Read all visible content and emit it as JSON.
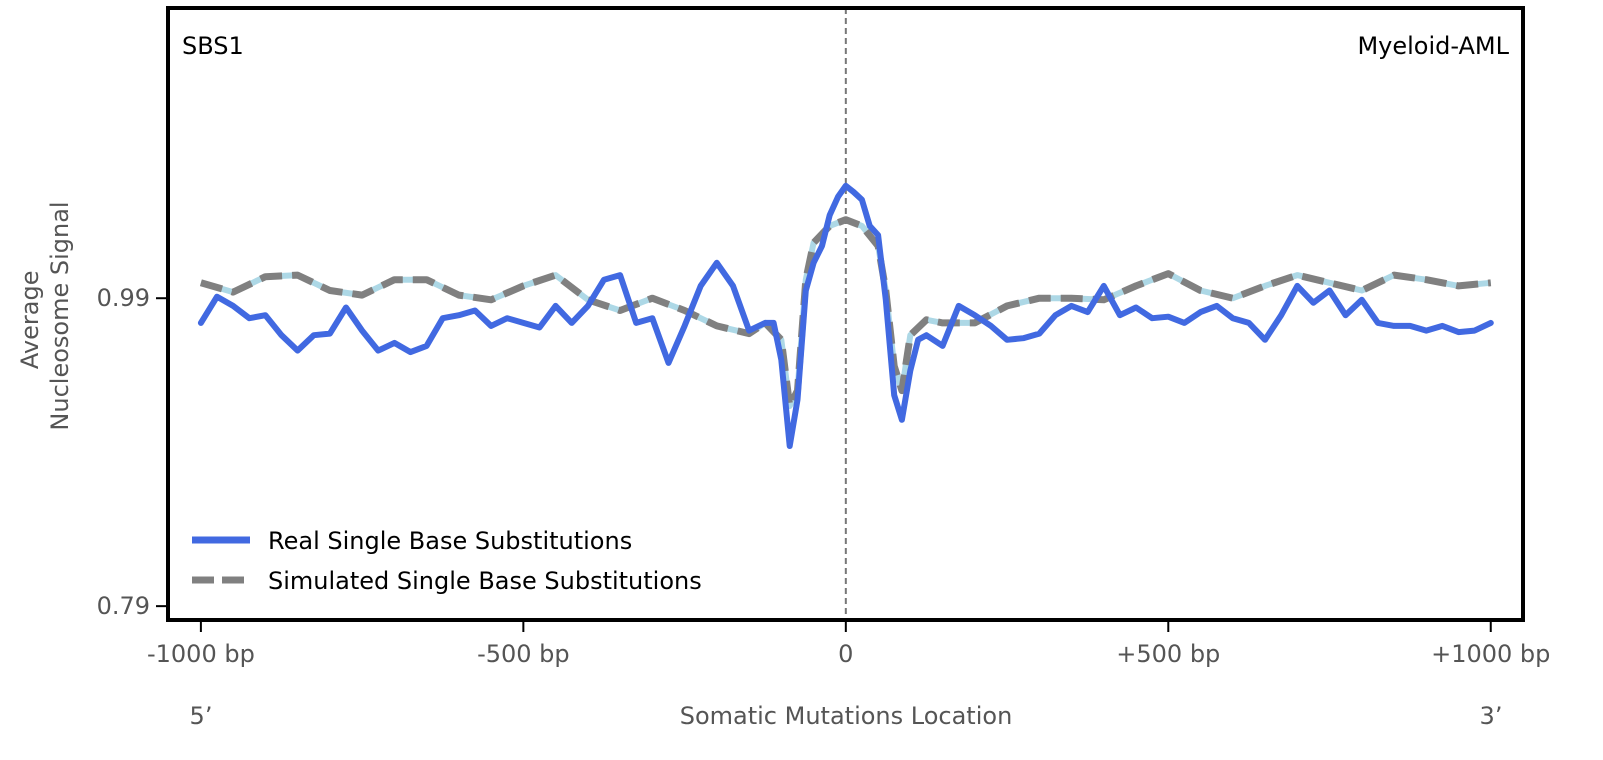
{
  "chart_data": {
    "type": "line",
    "title": "",
    "annotations": {
      "left": "SBS1",
      "right": "Myeloid-AML"
    },
    "xlabel": "Somatic Mutations Location",
    "ylabel_lines": [
      "Average",
      "Nucleosome Signal"
    ],
    "x_end_labels": {
      "left": "5’",
      "right": "3’"
    },
    "xlim": [
      -1051,
      1050
    ],
    "ylim": [
      0.781,
      1.1785
    ],
    "xticks": [
      {
        "value": -1000,
        "label": "-1000 bp"
      },
      {
        "value": -500,
        "label": "-500 bp"
      },
      {
        "value": 0,
        "label": "0"
      },
      {
        "value": 500,
        "label": "+500 bp"
      },
      {
        "value": 1000,
        "label": "+1000 bp"
      }
    ],
    "yticks": [
      {
        "value": 0.79,
        "label": "0.79"
      },
      {
        "value": 0.99,
        "label": "0.99"
      }
    ],
    "vline": 0,
    "legend": {
      "placement": "lower-left"
    },
    "colors": {
      "real": "#4169e1",
      "simulated": "#808080",
      "simulated_under": "#add8e6",
      "vline": "#777777",
      "tick_text": "#555555"
    },
    "series": [
      {
        "name": "Real Single Base Substitutions",
        "style": "solid",
        "x": [
          -1000,
          -975,
          -950,
          -925,
          -900,
          -875,
          -850,
          -825,
          -800,
          -775,
          -750,
          -725,
          -700,
          -675,
          -650,
          -625,
          -600,
          -575,
          -550,
          -525,
          -500,
          -475,
          -450,
          -425,
          -400,
          -375,
          -350,
          -325,
          -300,
          -275,
          -250,
          -225,
          -200,
          -175,
          -150,
          -125,
          -112,
          -100,
          -87,
          -75,
          -62,
          -50,
          -37,
          -25,
          -12,
          0,
          12,
          25,
          37,
          50,
          62,
          75,
          87,
          100,
          112,
          125,
          150,
          175,
          200,
          225,
          250,
          275,
          300,
          325,
          350,
          375,
          400,
          425,
          450,
          475,
          500,
          525,
          550,
          575,
          600,
          625,
          650,
          675,
          700,
          725,
          750,
          775,
          800,
          825,
          850,
          875,
          900,
          925,
          950,
          975,
          1000
        ],
        "values": [
          0.974,
          0.991,
          0.985,
          0.977,
          0.979,
          0.966,
          0.956,
          0.966,
          0.967,
          0.984,
          0.969,
          0.956,
          0.961,
          0.955,
          0.959,
          0.977,
          0.979,
          0.982,
          0.972,
          0.977,
          0.974,
          0.971,
          0.985,
          0.974,
          0.985,
          1.002,
          1.005,
          0.974,
          0.977,
          0.948,
          0.972,
          0.998,
          1.013,
          0.998,
          0.969,
          0.974,
          0.974,
          0.95,
          0.894,
          0.924,
          0.995,
          1.013,
          1.024,
          1.044,
          1.056,
          1.063,
          1.059,
          1.054,
          1.037,
          1.031,
          0.989,
          0.927,
          0.911,
          0.943,
          0.963,
          0.966,
          0.959,
          0.985,
          0.979,
          0.972,
          0.963,
          0.964,
          0.967,
          0.979,
          0.985,
          0.981,
          0.998,
          0.979,
          0.984,
          0.977,
          0.978,
          0.974,
          0.981,
          0.985,
          0.977,
          0.974,
          0.963,
          0.979,
          0.998,
          0.987,
          0.995,
          0.979,
          0.989,
          0.974,
          0.972,
          0.972,
          0.969,
          0.972,
          0.968,
          0.969,
          0.974
        ]
      },
      {
        "name": "Simulated Single Base Substitutions",
        "style": "dashed",
        "x": [
          -1000,
          -950,
          -900,
          -850,
          -800,
          -750,
          -700,
          -650,
          -600,
          -550,
          -500,
          -450,
          -400,
          -350,
          -300,
          -250,
          -200,
          -150,
          -125,
          -100,
          -87,
          -75,
          -62,
          -50,
          -25,
          0,
          25,
          50,
          62,
          75,
          87,
          100,
          125,
          150,
          200,
          250,
          300,
          350,
          400,
          450,
          500,
          550,
          600,
          650,
          700,
          750,
          800,
          850,
          900,
          950,
          1000
        ],
        "values": [
          1.0,
          0.994,
          1.004,
          1.005,
          0.995,
          0.992,
          1.002,
          1.002,
          0.992,
          0.989,
          0.998,
          1.005,
          0.989,
          0.982,
          0.99,
          0.982,
          0.972,
          0.967,
          0.974,
          0.963,
          0.92,
          0.93,
          1.002,
          1.026,
          1.037,
          1.041,
          1.037,
          1.024,
          0.995,
          0.946,
          0.93,
          0.966,
          0.976,
          0.974,
          0.974,
          0.985,
          0.99,
          0.99,
          0.989,
          0.998,
          1.006,
          0.995,
          0.99,
          0.998,
          1.005,
          1.0,
          0.995,
          1.005,
          1.002,
          0.998,
          1.0
        ]
      }
    ]
  }
}
